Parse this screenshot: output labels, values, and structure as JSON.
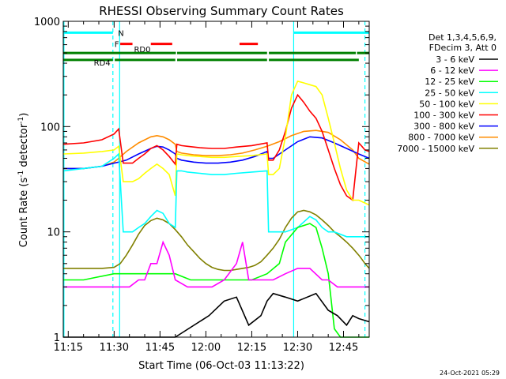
{
  "chart_data": {
    "type": "line",
    "title": "RHESSI Observing Summary Count Rates",
    "xlabel": "Start Time (06-Oct-03 11:13:22)",
    "ylabel_main": "Count Rate (s",
    "ylabel_sup1": "-1",
    "ylabel_mid": " detector",
    "ylabel_sup2": "-1",
    "ylabel_end": ")",
    "footer": "24-Oct-2021 05:29",
    "x_unit": "minutes after 11:00 UT",
    "xlim": [
      73.37,
      173.4
    ],
    "ylim": [
      1,
      1000
    ],
    "y_scale": "log",
    "x_ticks": [
      {
        "value": 75,
        "label": "11:15"
      },
      {
        "value": 90,
        "label": "11:30"
      },
      {
        "value": 105,
        "label": "11:45"
      },
      {
        "value": 120,
        "label": "12:00"
      },
      {
        "value": 135,
        "label": "12:15"
      },
      {
        "value": 150,
        "label": "12:30"
      },
      {
        "value": 165,
        "label": "12:45"
      }
    ],
    "y_ticks": [
      {
        "value": 1,
        "label": "1"
      },
      {
        "value": 10,
        "label": "10"
      },
      {
        "value": 100,
        "label": "100"
      },
      {
        "value": 1000,
        "label": "1000"
      }
    ],
    "legend_header": [
      "Det 1,3,4,5,6,9,",
      "FDecim 3, Att 0"
    ],
    "legend_position": "right",
    "series": [
      {
        "name": "3 - 6 keV",
        "color": "#000000",
        "x": [
          73.4,
          110,
          121,
          126,
          130,
          134,
          138,
          140,
          142,
          146,
          150,
          156,
          160,
          163,
          166,
          168,
          170,
          173.4
        ],
        "y": [
          1,
          1,
          1.6,
          2.2,
          2.4,
          1.3,
          1.6,
          2.2,
          2.6,
          2.4,
          2.2,
          2.6,
          1.8,
          1.6,
          1.3,
          1.6,
          1.5,
          1.4
        ]
      },
      {
        "name": "6 - 12 keV",
        "color": "#ff00ff",
        "x": [
          73.4,
          88,
          92,
          95,
          98,
          100,
          102,
          104,
          106,
          108,
          110,
          114,
          118,
          122,
          126,
          130,
          132,
          134,
          138,
          142,
          146,
          150,
          154,
          158,
          160,
          163,
          166,
          170,
          173.4
        ],
        "y": [
          3,
          3,
          3,
          3,
          3.5,
          3.5,
          5,
          5,
          8,
          6,
          3.5,
          3,
          3,
          3,
          3.5,
          5,
          8,
          3.5,
          3.5,
          3.5,
          4,
          4.5,
          4.5,
          3.5,
          3.5,
          3,
          3,
          3,
          3
        ]
      },
      {
        "name": "12 - 25 keV",
        "color": "#00ff00",
        "x": [
          73.4,
          80,
          90,
          95,
          100,
          105,
          110,
          115,
          120,
          125,
          130,
          135,
          140,
          144,
          146,
          150,
          154,
          156,
          158,
          160,
          162,
          164,
          166,
          168,
          170,
          173.4
        ],
        "y": [
          3.5,
          3.5,
          4,
          4,
          4,
          4,
          4,
          3.5,
          3.5,
          3.5,
          3.5,
          3.5,
          4,
          5,
          8,
          11,
          12,
          11,
          7,
          4,
          1.2,
          1,
          1,
          1,
          1,
          1
        ]
      },
      {
        "name": "25 - 50 keV",
        "color": "#00ffff",
        "x": [
          73.4,
          80,
          86,
          90,
          91.5,
          93,
          96,
          98,
          100,
          102,
          104,
          106,
          108,
          110,
          110.5,
          112,
          114,
          118,
          122,
          126,
          130,
          135,
          140,
          140.5,
          142,
          146,
          150,
          154,
          156,
          158,
          160,
          162,
          166,
          168,
          170,
          173.4
        ],
        "y": [
          38,
          40,
          42,
          50,
          55,
          10,
          10,
          11,
          12,
          14,
          16,
          15,
          12,
          11,
          38,
          38,
          37,
          36,
          35,
          35,
          36,
          37,
          38,
          10,
          10,
          10,
          11,
          14,
          13,
          11,
          10,
          10,
          9,
          9,
          9,
          9
        ]
      },
      {
        "name": "50 - 100 keV",
        "color": "#ffff00",
        "x": [
          73.4,
          80,
          86,
          90,
          91.5,
          93,
          96,
          98,
          100,
          102,
          104,
          106,
          108,
          110,
          110.5,
          112,
          114,
          118,
          122,
          126,
          130,
          135,
          140,
          140.5,
          142,
          144,
          146,
          148,
          150,
          152,
          154,
          156,
          158,
          160,
          162,
          164,
          166,
          168,
          170,
          173.4
        ],
        "y": [
          55,
          56,
          58,
          60,
          65,
          30,
          30,
          32,
          36,
          40,
          44,
          40,
          35,
          22,
          55,
          54,
          53,
          52,
          51,
          51,
          52,
          53,
          55,
          35,
          35,
          40,
          80,
          200,
          270,
          260,
          250,
          240,
          200,
          120,
          70,
          40,
          25,
          20,
          20,
          18
        ]
      },
      {
        "name": "100 - 300 keV",
        "color": "#ff0000",
        "x": [
          73.4,
          80,
          86,
          90,
          91.5,
          93,
          96,
          98,
          100,
          102,
          104,
          106,
          108,
          110,
          110.5,
          112,
          114,
          118,
          122,
          126,
          130,
          135,
          140,
          140.5,
          142,
          144,
          146,
          148,
          150,
          152,
          154,
          156,
          158,
          160,
          162,
          164,
          166,
          168,
          170,
          171,
          172,
          173.4
        ],
        "y": [
          68,
          70,
          75,
          85,
          95,
          45,
          45,
          50,
          55,
          62,
          66,
          60,
          52,
          44,
          68,
          66,
          65,
          63,
          62,
          62,
          64,
          66,
          70,
          48,
          48,
          60,
          90,
          150,
          200,
          170,
          140,
          120,
          90,
          60,
          40,
          28,
          22,
          20,
          70,
          65,
          60,
          58
        ]
      },
      {
        "name": "300 - 800 keV",
        "color": "#0000ff",
        "x": [
          73.4,
          80,
          86,
          90,
          91.5,
          94,
          98,
          102,
          104,
          106,
          108,
          110,
          110.5,
          112,
          116,
          120,
          124,
          128,
          132,
          136,
          140,
          140.5,
          142,
          146,
          150,
          154,
          158,
          162,
          166,
          170,
          173.4
        ],
        "y": [
          40,
          40,
          42,
          45,
          46,
          48,
          55,
          62,
          65,
          64,
          60,
          55,
          50,
          48,
          46,
          45,
          45,
          46,
          48,
          52,
          58,
          50,
          50,
          60,
          72,
          80,
          78,
          70,
          62,
          55,
          50
        ]
      },
      {
        "name": "800 - 7000 keV",
        "color": "#ff8c00",
        "x": [
          73.4,
          80,
          86,
          90,
          91.5,
          94,
          98,
          102,
          104,
          106,
          108,
          110,
          110.5,
          112,
          116,
          120,
          124,
          128,
          132,
          136,
          140,
          144,
          148,
          152,
          156,
          160,
          164,
          168,
          170,
          173.4
        ],
        "y": [
          40,
          40,
          42,
          46,
          50,
          58,
          70,
          80,
          82,
          80,
          75,
          68,
          58,
          56,
          54,
          53,
          53,
          54,
          56,
          60,
          65,
          72,
          82,
          90,
          92,
          88,
          75,
          60,
          50,
          44
        ]
      },
      {
        "name": "7000 - 15000 keV",
        "color": "#808000",
        "x": [
          73.4,
          80,
          86,
          90,
          92,
          94,
          96,
          98,
          100,
          102,
          104,
          106,
          108,
          110,
          112,
          114,
          116,
          118,
          120,
          122,
          124,
          126,
          128,
          130,
          132,
          134,
          136,
          138,
          140,
          142,
          144,
          146,
          148,
          150,
          152,
          154,
          156,
          158,
          160,
          162,
          164,
          166,
          168,
          170,
          171,
          172,
          173.4
        ],
        "y": [
          4.5,
          4.5,
          4.5,
          4.6,
          5,
          6,
          7.5,
          9.5,
          11.5,
          12.8,
          13.5,
          13,
          12,
          10.5,
          9,
          7.5,
          6.5,
          5.6,
          5,
          4.6,
          4.4,
          4.3,
          4.3,
          4.4,
          4.5,
          4.6,
          4.8,
          5.2,
          6,
          7,
          8.5,
          11,
          13.5,
          15.5,
          16,
          15.5,
          14.5,
          13,
          11.5,
          10,
          9,
          8,
          7,
          6,
          5.5,
          5,
          4.5
        ]
      }
    ],
    "attenuator_bars": {
      "cyan_N": {
        "label": "N",
        "color": "#00ffff",
        "segments": [
          [
            73.4,
            89.6
          ],
          [
            148.7,
            173.4
          ]
        ]
      },
      "red_F": {
        "label": "F",
        "color": "#ff0000",
        "segments": [
          [
            92,
            96
          ],
          [
            102,
            109
          ],
          [
            131,
            137
          ]
        ]
      },
      "green_RD0": {
        "label": "RD0",
        "color": "#008000",
        "segments": [
          [
            73.4,
            110.2
          ],
          [
            110.6,
            140
          ],
          [
            140.6,
            169
          ],
          [
            169.4,
            173.4
          ]
        ]
      },
      "green_RD4": {
        "label": "RD4",
        "color": "#008000",
        "segments": [
          [
            73.4,
            89.6
          ],
          [
            90.2,
            110
          ],
          [
            110.6,
            140
          ],
          [
            140.6,
            170
          ]
        ]
      }
    },
    "vertical_lines": [
      {
        "x": 89.6,
        "color": "#00ffff",
        "style": "dashed"
      },
      {
        "x": 91.8,
        "color": "#00ffff",
        "style": "solid"
      },
      {
        "x": 148.7,
        "color": "#00ffff",
        "style": "solid"
      },
      {
        "x": 172,
        "color": "#00ffff",
        "style": "dashed"
      },
      {
        "x": 73.6,
        "color": "#00ffff",
        "style": "solid"
      }
    ]
  }
}
